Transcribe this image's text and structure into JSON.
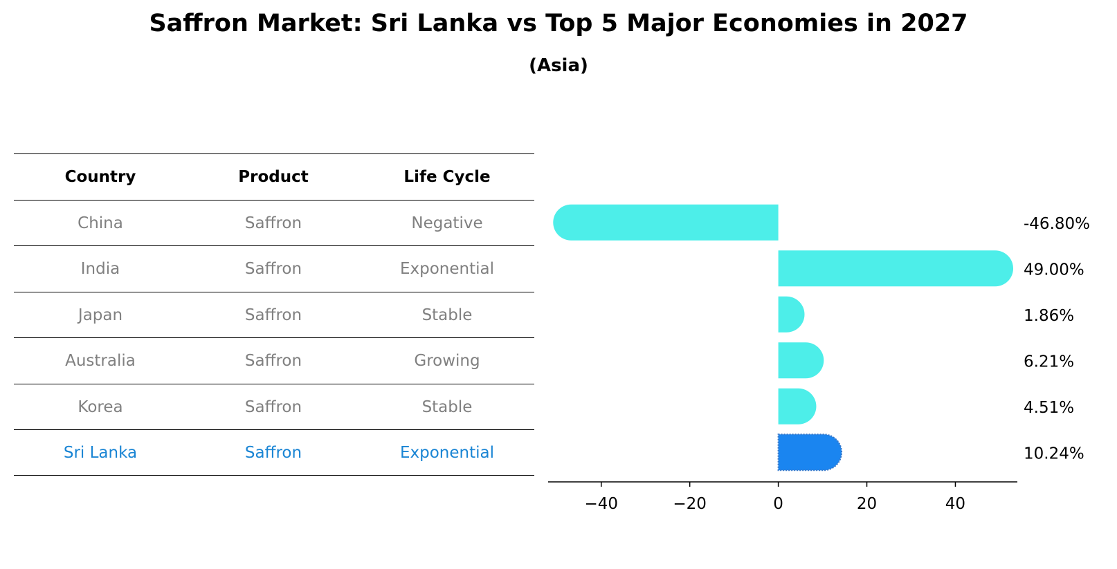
{
  "chart_data": {
    "type": "bar",
    "orientation": "horizontal",
    "title": "Saffron Market: Sri Lanka vs Top 5 Major Economies in 2027",
    "subtitle": "(Asia)",
    "table": {
      "headers": [
        "Country",
        "Product",
        "Life Cycle"
      ],
      "rows": [
        [
          "China",
          "Saffron",
          "Negative"
        ],
        [
          "India",
          "Saffron",
          "Exponential"
        ],
        [
          "Japan",
          "Saffron",
          "Stable"
        ],
        [
          "Australia",
          "Saffron",
          "Growing"
        ],
        [
          "Korea",
          "Saffron",
          "Stable"
        ],
        [
          "Sri Lanka",
          "Saffron",
          "Exponential"
        ]
      ],
      "highlight_row": 5
    },
    "categories": [
      "China",
      "India",
      "Japan",
      "Australia",
      "Korea",
      "Sri Lanka"
    ],
    "values": [
      -46.8,
      49.0,
      1.86,
      6.21,
      4.51,
      10.24
    ],
    "value_labels": [
      "-46.80%",
      "49.00%",
      "1.86%",
      "6.21%",
      "4.51%",
      "10.24%"
    ],
    "xlim": [
      -52,
      54
    ],
    "xticks": [
      -40,
      -20,
      0,
      20,
      40
    ],
    "xtick_labels": [
      "−40",
      "−20",
      "0",
      "20",
      "40"
    ],
    "xlabel": "",
    "ylabel": "",
    "grid": false,
    "colors": {
      "bar": "#4deee9",
      "highlight": "#1a85f0",
      "text_muted": "#808080",
      "text_highlight": "#1a85d4"
    }
  }
}
